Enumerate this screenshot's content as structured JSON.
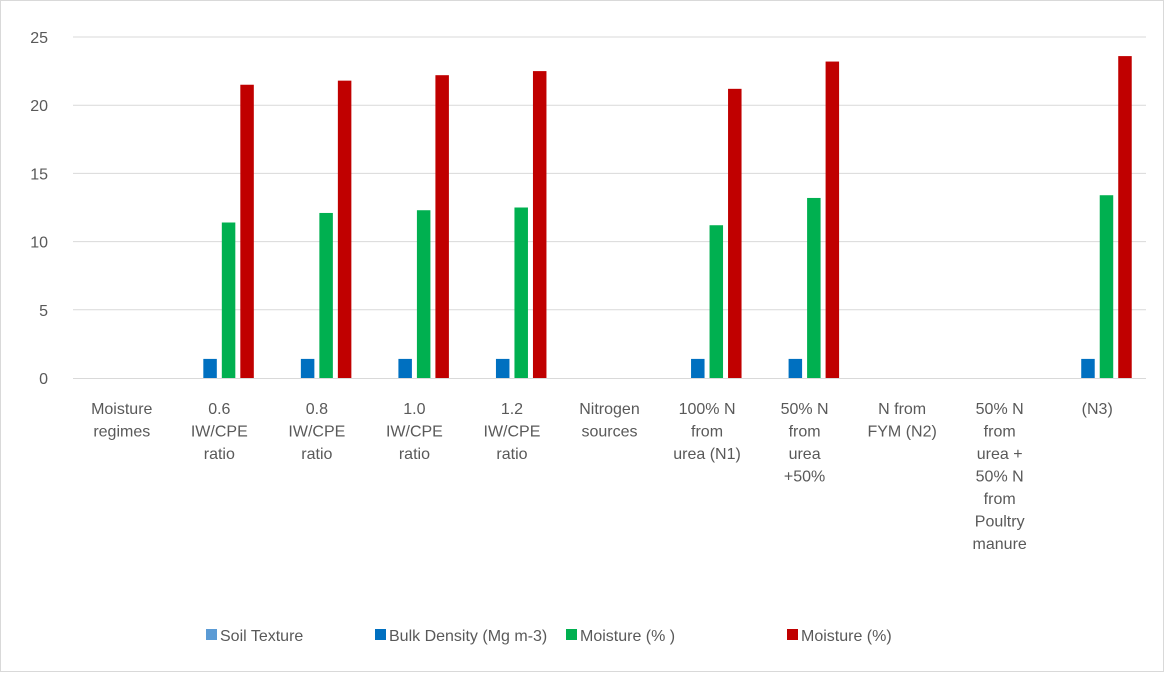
{
  "chart_data": {
    "type": "bar",
    "title": "",
    "xlabel": "",
    "ylabel": "",
    "ylim": [
      0,
      25
    ],
    "yticks": [
      0,
      5,
      10,
      15,
      20,
      25
    ],
    "grid": true,
    "legend_position": "bottom",
    "categories": [
      [
        "Moisture",
        "regimes"
      ],
      [
        "0.6",
        "IW/CPE",
        "ratio"
      ],
      [
        "0.8",
        "IW/CPE",
        "ratio"
      ],
      [
        "1.0",
        "IW/CPE",
        "ratio"
      ],
      [
        "1.2",
        "IW/CPE",
        "ratio"
      ],
      [
        "Nitrogen",
        "sources"
      ],
      [
        "100% N",
        "from",
        "urea (N1)"
      ],
      [
        "50% N",
        "from",
        "urea",
        "+50%"
      ],
      [
        "N from",
        "FYM (N2)"
      ],
      [
        "50% N",
        "from",
        "urea +",
        "50% N",
        "from",
        "Poultry",
        "manure"
      ],
      [
        "(N3)"
      ]
    ],
    "series": [
      {
        "name": "Soil Texture",
        "color": "#5B9BD5",
        "values": [
          null,
          null,
          null,
          null,
          null,
          null,
          null,
          null,
          null,
          null,
          null
        ]
      },
      {
        "name": "Bulk Density (Mg m-3)",
        "color": "#0070C0",
        "values": [
          null,
          1.4,
          1.4,
          1.4,
          1.4,
          null,
          1.4,
          1.4,
          null,
          null,
          1.4
        ]
      },
      {
        "name": "Moisture (% )",
        "color": "#00B050",
        "values": [
          null,
          11.4,
          12.1,
          12.3,
          12.5,
          null,
          11.2,
          13.2,
          null,
          null,
          13.4
        ]
      },
      {
        "name": "Moisture (%)",
        "color": "#C00000",
        "values": [
          null,
          21.5,
          21.8,
          22.2,
          22.5,
          null,
          21.2,
          23.2,
          null,
          null,
          23.6
        ]
      }
    ]
  }
}
